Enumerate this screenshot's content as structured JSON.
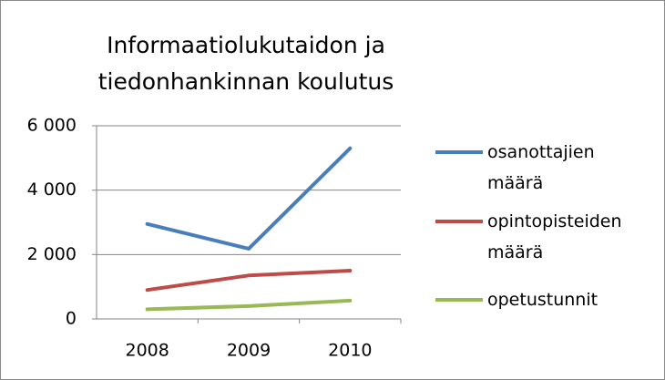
{
  "chart_data": {
    "type": "line",
    "title": "Informaatiolukutaidon ja tiedonhankinnan koulutus",
    "categories": [
      "2008",
      "2009",
      "2010"
    ],
    "series": [
      {
        "name": "osanottajien määrä",
        "color": "#4a7ebb",
        "values": [
          2950,
          2180,
          5300
        ]
      },
      {
        "name": "opintopisteiden määrä",
        "color": "#be4b48",
        "values": [
          900,
          1350,
          1500
        ]
      },
      {
        "name": "opetustunnit",
        "color": "#98b954",
        "values": [
          300,
          400,
          570
        ]
      }
    ],
    "ylim": [
      0,
      6000
    ],
    "yticks": [
      0,
      {
        "value": 2000,
        "label": "2 000"
      },
      {
        "value": 4000,
        "label": "4 000"
      },
      {
        "value": 6000,
        "label": "6 000"
      }
    ],
    "grid": true,
    "legend": "right"
  }
}
